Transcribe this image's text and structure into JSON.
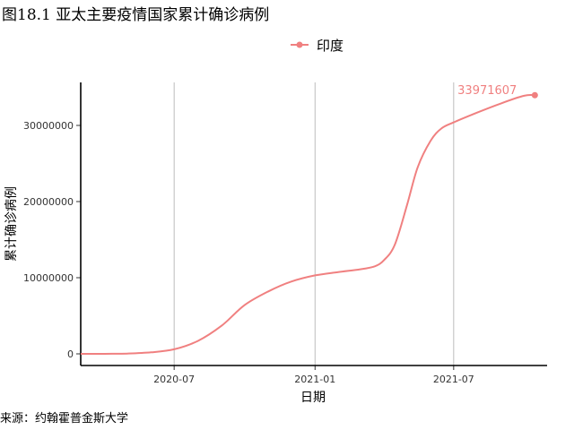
{
  "title": "图18.1 亚太主要疫情国家累计确诊病例",
  "source": "来源：约翰霍普金斯大学",
  "chart_data": {
    "type": "line",
    "xlabel": "日期",
    "ylabel": "累计确诊病例",
    "x_ticks": [
      "2020-07",
      "2021-01",
      "2021-07"
    ],
    "y_ticks": [
      "0",
      "10000000",
      "20000000",
      "30000000"
    ],
    "ylim": [
      0,
      35000000
    ],
    "xlim": [
      "2020-03-01",
      "2021-10-31"
    ],
    "grid": "vertical-major",
    "legend_position": "top",
    "series": [
      {
        "name": "印度",
        "color": "#F08080",
        "end_label": "33971607",
        "points": [
          [
            "2020-03-01",
            0
          ],
          [
            "2020-04-01",
            5000
          ],
          [
            "2020-05-01",
            40000
          ],
          [
            "2020-06-01",
            200000
          ],
          [
            "2020-07-01",
            600000
          ],
          [
            "2020-08-01",
            1700000
          ],
          [
            "2020-09-01",
            3700000
          ],
          [
            "2020-10-01",
            6400000
          ],
          [
            "2020-11-01",
            8200000
          ],
          [
            "2020-12-01",
            9500000
          ],
          [
            "2021-01-01",
            10300000
          ],
          [
            "2021-02-01",
            10750000
          ],
          [
            "2021-03-01",
            11100000
          ],
          [
            "2021-03-20",
            11500000
          ],
          [
            "2021-04-01",
            12300000
          ],
          [
            "2021-04-15",
            14300000
          ],
          [
            "2021-05-01",
            19500000
          ],
          [
            "2021-05-15",
            24500000
          ],
          [
            "2021-06-01",
            28000000
          ],
          [
            "2021-06-15",
            29600000
          ],
          [
            "2021-07-01",
            30400000
          ],
          [
            "2021-08-01",
            31700000
          ],
          [
            "2021-09-01",
            32900000
          ],
          [
            "2021-10-01",
            33900000
          ],
          [
            "2021-10-15",
            33971607
          ]
        ]
      }
    ]
  }
}
